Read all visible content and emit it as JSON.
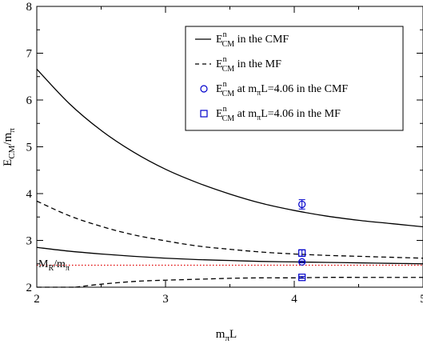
{
  "chart_data": {
    "type": "line",
    "xlabel": {
      "base": "m",
      "sub": "π",
      "tail": "L"
    },
    "ylabel": {
      "base": "E",
      "sub1": "CM",
      "mid": "/m",
      "sub2": "π"
    },
    "xlim": [
      2,
      5
    ],
    "ylim": [
      2,
      8
    ],
    "x_ticks": [
      "2",
      "3",
      "4",
      "5"
    ],
    "y_ticks": [
      "2",
      "3",
      "4",
      "5",
      "6",
      "7",
      "8"
    ],
    "grid": false,
    "legend_position": "top-right",
    "legend": [
      {
        "base": "E",
        "sup": "n",
        "sub": "CM",
        "text": " in the CMF",
        "marker": "solid-line"
      },
      {
        "base": "E",
        "sup": "n",
        "sub": "CM",
        "text": " in the MF",
        "marker": "dashed-line"
      },
      {
        "base": "E",
        "sup": "n",
        "sub": "CM",
        "text": " at m",
        "sub2": "π",
        "text2": "L=4.06 in the CMF",
        "marker": "circle"
      },
      {
        "base": "E",
        "sup": "n",
        "sub": "CM",
        "text": " at m",
        "sub2": "π",
        "text2": "L=4.06 in the MF",
        "marker": "square"
      }
    ],
    "annotation": {
      "base": "M",
      "sub1": "R",
      "mid": "/m",
      "sub2": "π"
    },
    "threshold": {
      "y": 2.47,
      "color": "#e00000"
    },
    "curves": [
      {
        "style": "solid",
        "group": "CMF",
        "x": [
          2.0,
          2.25,
          2.5,
          2.75,
          3.0,
          3.25,
          3.5,
          3.75,
          4.0,
          4.25,
          4.5,
          4.75,
          5.0
        ],
        "y": [
          6.66,
          5.93,
          5.35,
          4.89,
          4.52,
          4.23,
          3.99,
          3.79,
          3.64,
          3.52,
          3.43,
          3.36,
          3.29
        ]
      },
      {
        "style": "solid",
        "group": "CMF",
        "x": [
          2.0,
          2.25,
          2.5,
          2.75,
          3.0,
          3.25,
          3.5,
          3.75,
          4.0,
          4.25,
          4.5,
          4.75,
          5.0
        ],
        "y": [
          2.85,
          2.77,
          2.71,
          2.66,
          2.62,
          2.59,
          2.57,
          2.55,
          2.54,
          2.53,
          2.52,
          2.51,
          2.5
        ]
      },
      {
        "style": "dashed",
        "group": "MF",
        "x": [
          2.0,
          2.25,
          2.5,
          2.75,
          3.0,
          3.25,
          3.5,
          3.75,
          4.0,
          4.25,
          4.5,
          4.75,
          5.0
        ],
        "y": [
          3.84,
          3.53,
          3.3,
          3.12,
          2.99,
          2.88,
          2.81,
          2.75,
          2.71,
          2.68,
          2.66,
          2.64,
          2.62
        ]
      },
      {
        "style": "dashed",
        "group": "MF",
        "x": [
          2.3,
          2.45,
          2.6,
          2.8,
          3.0,
          3.25,
          3.5,
          3.75,
          4.0,
          4.25,
          4.5,
          4.75,
          5.0
        ],
        "y": [
          2.0,
          2.05,
          2.09,
          2.13,
          2.15,
          2.17,
          2.19,
          2.2,
          2.2,
          2.21,
          2.21,
          2.21,
          2.21
        ]
      }
    ],
    "flat_curve": {
      "style": "dashed",
      "x": [
        2.0,
        2.3
      ],
      "y": [
        2.0,
        2.0
      ]
    },
    "points": [
      {
        "marker": "circle",
        "group": "CMF",
        "x": 4.06,
        "y": 3.77,
        "err": 0.1
      },
      {
        "marker": "circle",
        "group": "CMF",
        "x": 4.06,
        "y": 2.54,
        "err": 0.02
      },
      {
        "marker": "square",
        "group": "MF",
        "x": 4.06,
        "y": 2.73,
        "err": 0.07
      },
      {
        "marker": "square",
        "group": "MF",
        "x": 4.06,
        "y": 2.21,
        "err": 0.02
      }
    ],
    "marker_color": "#0000cc"
  }
}
